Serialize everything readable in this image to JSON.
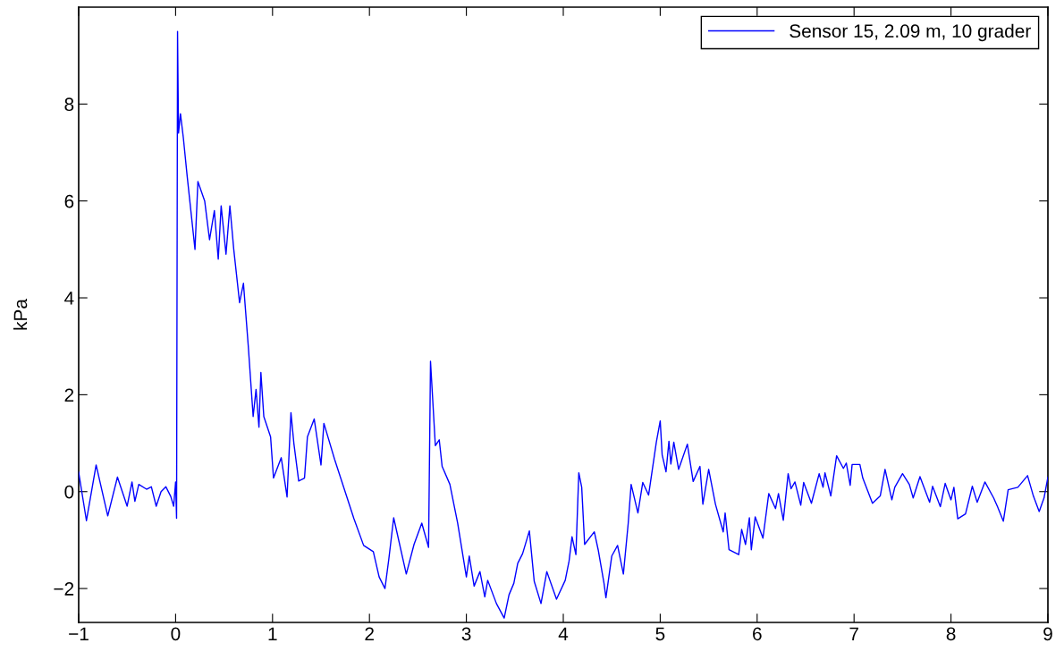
{
  "chart_data": {
    "type": "line",
    "ylabel": "kPa",
    "xlim": [
      -1,
      9
    ],
    "ylim": [
      -2.7,
      10
    ],
    "xticks": [
      {
        "value": -1,
        "label": "−1"
      },
      0,
      1,
      2,
      3,
      4,
      5,
      6,
      7,
      8,
      9
    ],
    "yticks": [
      {
        "value": -2,
        "label": "−2"
      },
      0,
      2,
      4,
      6,
      8
    ],
    "grid": false,
    "legend": "top right",
    "marker": "none",
    "line_style": "solid",
    "series": [
      {
        "name": "Sensor 15, 2.09 m, 10 grader",
        "color": "#0000ff",
        "x": [
          -1,
          -0.92,
          -0.82,
          -0.7,
          -0.6,
          -0.5,
          -0.45,
          -0.42,
          -0.38,
          -0.3,
          -0.25,
          -0.2,
          -0.15,
          -0.1,
          -0.05,
          -0.02,
          0,
          0.01,
          0.02,
          0.03,
          0.05,
          0.08,
          0.12,
          0.2,
          0.23,
          0.3,
          0.35,
          0.4,
          0.44,
          0.47,
          0.52,
          0.56,
          0.6,
          0.66,
          0.7,
          0.75,
          0.8,
          0.83,
          0.86,
          0.88,
          0.91,
          0.98,
          1.01,
          1.09,
          1.15,
          1.19,
          1.22,
          1.27,
          1.33,
          1.36,
          1.43,
          1.5,
          1.53,
          1.64,
          1.77,
          1.84,
          1.94,
          2.04,
          2.1,
          2.16,
          2.2,
          2.25,
          2.38,
          2.46,
          2.54,
          2.61,
          2.63,
          2.68,
          2.72,
          2.75,
          2.83,
          2.91,
          3.0,
          3.03,
          3.08,
          3.14,
          3.19,
          3.22,
          3.31,
          3.39,
          3.44,
          3.49,
          3.53,
          3.58,
          3.65,
          3.7,
          3.77,
          3.83,
          3.93,
          4.02,
          4.06,
          4.09,
          4.13,
          4.16,
          4.19,
          4.22,
          4.32,
          4.36,
          4.42,
          4.44,
          4.5,
          4.56,
          4.62,
          4.67,
          4.7,
          4.77,
          4.82,
          4.88,
          4.96,
          5.0,
          5.02,
          5.06,
          5.09,
          5.11,
          5.14,
          5.19,
          5.28,
          5.34,
          5.41,
          5.44,
          5.5,
          5.57,
          5.65,
          5.67,
          5.71,
          5.81,
          5.84,
          5.88,
          5.92,
          5.94,
          5.98,
          6.06,
          6.12,
          6.19,
          6.22,
          6.27,
          6.32,
          6.35,
          6.39,
          6.45,
          6.48,
          6.56,
          6.64,
          6.68,
          6.7,
          6.76,
          6.82,
          6.89,
          6.92,
          6.96,
          6.98,
          7.06,
          7.09,
          7.19,
          7.27,
          7.32,
          7.39,
          7.42,
          7.5,
          7.57,
          7.61,
          7.68,
          7.78,
          7.81,
          7.89,
          7.94,
          8.0,
          8.03,
          8.07,
          8.15,
          8.22,
          8.27,
          8.35,
          8.44,
          8.48,
          8.54,
          8.59,
          8.69,
          8.79,
          8.85,
          8.91,
          8.96,
          9.0
        ],
        "values": [
          0.4,
          -0.6,
          0.55,
          -0.5,
          0.3,
          -0.3,
          0.2,
          -0.2,
          0.15,
          0.05,
          0.1,
          -0.3,
          0,
          0.1,
          -0.1,
          -0.3,
          0.2,
          -0.55,
          9.5,
          7.4,
          7.8,
          7.3,
          6.5,
          5.0,
          6.4,
          6.0,
          5.2,
          5.8,
          4.8,
          5.9,
          4.9,
          5.9,
          5.0,
          3.9,
          4.3,
          3.0,
          1.55,
          2.11,
          1.33,
          2.46,
          1.55,
          1.13,
          0.28,
          0.7,
          -0.11,
          1.63,
          1.0,
          0.22,
          0.28,
          1.13,
          1.5,
          0.55,
          1.41,
          0.67,
          -0.13,
          -0.56,
          -1.11,
          -1.24,
          -1.76,
          -2.0,
          -1.39,
          -0.54,
          -1.7,
          -1.09,
          -0.65,
          -1.15,
          2.69,
          0.95,
          1.07,
          0.52,
          0.15,
          -0.65,
          -1.76,
          -1.33,
          -1.95,
          -1.65,
          -2.17,
          -1.83,
          -2.31,
          -2.61,
          -2.13,
          -1.89,
          -1.48,
          -1.28,
          -0.81,
          -1.85,
          -2.31,
          -1.65,
          -2.22,
          -1.83,
          -1.43,
          -0.93,
          -1.3,
          0.39,
          0.09,
          -1.09,
          -0.83,
          -1.2,
          -1.89,
          -2.19,
          -1.33,
          -1.11,
          -1.7,
          -0.65,
          0.15,
          -0.44,
          0.19,
          -0.07,
          1.02,
          1.46,
          0.76,
          0.41,
          1.04,
          0.57,
          1.02,
          0.46,
          0.98,
          0.21,
          0.52,
          -0.26,
          0.46,
          -0.26,
          -0.83,
          -0.44,
          -1.2,
          -1.3,
          -0.78,
          -1.09,
          -0.54,
          -1.2,
          -0.52,
          -0.96,
          -0.04,
          -0.35,
          -0.04,
          -0.59,
          0.37,
          0.06,
          0.2,
          -0.28,
          0.19,
          -0.24,
          0.37,
          0.09,
          0.39,
          -0.09,
          0.74,
          0.48,
          0.59,
          0.13,
          0.56,
          0.56,
          0.28,
          -0.24,
          -0.09,
          0.46,
          -0.17,
          0.09,
          0.37,
          0.15,
          -0.13,
          0.31,
          -0.22,
          0.11,
          -0.31,
          0.17,
          -0.17,
          0.09,
          -0.56,
          -0.46,
          0.11,
          -0.22,
          0.2,
          -0.13,
          -0.31,
          -0.61,
          0.04,
          0.09,
          0.33,
          -0.09,
          -0.41,
          -0.13,
          0.3
        ]
      }
    ]
  }
}
